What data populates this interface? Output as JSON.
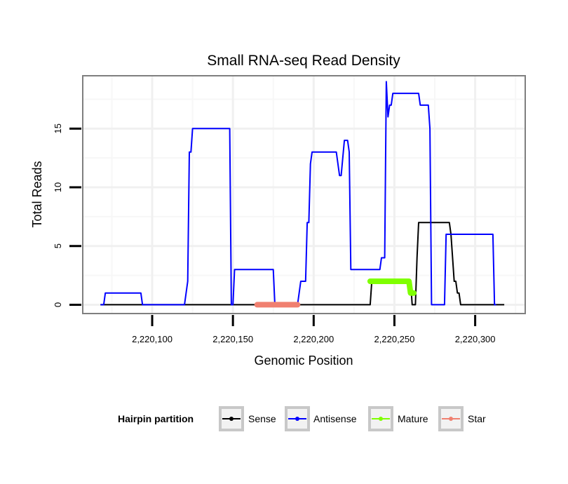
{
  "chart_data": {
    "type": "line",
    "title": "Small RNA-seq Read Density",
    "xlabel": "Genomic Position",
    "ylabel": "Total Reads",
    "xlim": [
      2220057,
      2220331
    ],
    "ylim": [
      -0.75,
      19.5
    ],
    "x_ticks": [
      2220100,
      2220150,
      2220200,
      2220250,
      2220300
    ],
    "x_tick_labels": [
      "2,220,100",
      "2,220,150",
      "2,220,200",
      "2,220,250",
      "2,220,300"
    ],
    "y_ticks": [
      0,
      5,
      10,
      15
    ],
    "y_tick_labels": [
      "0",
      "5",
      "10",
      "15"
    ],
    "grid": true,
    "legend": {
      "title": "Hairpin partition",
      "position": "bottom",
      "entries": [
        {
          "name": "Sense",
          "color": "#000000"
        },
        {
          "name": "Antisense",
          "color": "#0000ff"
        },
        {
          "name": "Mature",
          "color": "#7fff00"
        },
        {
          "name": "Star",
          "color": "#f08070"
        }
      ]
    },
    "series": [
      {
        "name": "Sense",
        "color": "#000000",
        "style": "line",
        "x": [
          2220068,
          2220235,
          2220236,
          2220255,
          2220260,
          2220261,
          2220263,
          2220264,
          2220265,
          2220284,
          2220285,
          2220287,
          2220288,
          2220289,
          2220290,
          2220291,
          2220292,
          2220318
        ],
        "y": [
          0,
          0,
          2,
          2,
          2,
          0,
          0,
          4,
          7,
          7,
          6,
          2,
          2,
          1,
          1,
          0,
          0,
          0
        ]
      },
      {
        "name": "Antisense",
        "color": "#0000ff",
        "style": "line",
        "x": [
          2220068,
          2220070,
          2220071,
          2220093,
          2220094,
          2220120,
          2220122,
          2220123,
          2220124,
          2220125,
          2220148,
          2220149,
          2220150,
          2220151,
          2220175,
          2220176,
          2220190,
          2220192,
          2220195,
          2220196,
          2220197,
          2220198,
          2220199,
          2220200,
          2220214,
          2220216,
          2220217,
          2220219,
          2220221,
          2220222,
          2220223,
          2220224,
          2220225,
          2220241,
          2220242,
          2220244,
          2220245,
          2220246,
          2220247,
          2220248,
          2220249,
          2220265,
          2220266,
          2220271,
          2220272,
          2220273,
          2220280,
          2220281,
          2220282,
          2220311,
          2220312,
          2220313
        ],
        "y": [
          0,
          0,
          1,
          1,
          0,
          0,
          2,
          13,
          13,
          15,
          15,
          0,
          0,
          3,
          3,
          0,
          0,
          2,
          2,
          7,
          7,
          12,
          13,
          13,
          13,
          11,
          11,
          14,
          14,
          13,
          3,
          3,
          3,
          3,
          4,
          4,
          19,
          16,
          17,
          17,
          18,
          18,
          17,
          17,
          15,
          0,
          0,
          0,
          6,
          6,
          0,
          0
        ]
      },
      {
        "name": "Mature",
        "color": "#7fff00",
        "style": "thick",
        "x": [
          2220235,
          2220259,
          2220260,
          2220262
        ],
        "y": [
          2,
          2,
          1,
          1
        ]
      },
      {
        "name": "Star",
        "color": "#f08070",
        "style": "thick",
        "x": [
          2220165,
          2220190
        ],
        "y": [
          0,
          0
        ]
      }
    ]
  }
}
